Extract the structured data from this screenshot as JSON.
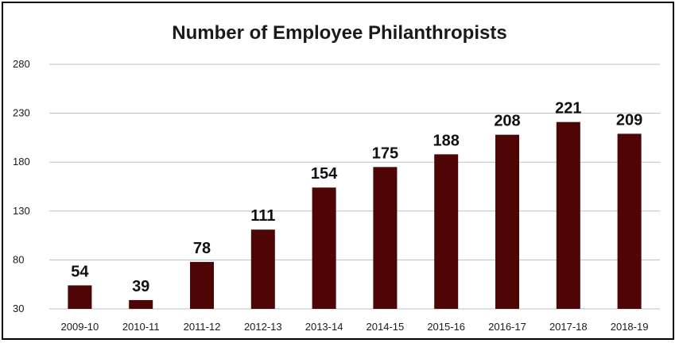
{
  "chart_data": {
    "type": "bar",
    "title": "Number of Employee Philanthropists",
    "xlabel": "",
    "ylabel": "",
    "categories": [
      "2009-10",
      "2010-11",
      "2011-12",
      "2012-13",
      "2013-14",
      "2014-15",
      "2015-16",
      "2016-17",
      "2017-18",
      "2018-19"
    ],
    "values": [
      54,
      39,
      78,
      111,
      154,
      175,
      188,
      208,
      221,
      209
    ],
    "ylim": [
      30,
      280
    ],
    "yticks": [
      30,
      80,
      130,
      180,
      230,
      280
    ],
    "grid": true,
    "bar_color": "#4d0505",
    "gridline_color": "#bfbfbf"
  }
}
